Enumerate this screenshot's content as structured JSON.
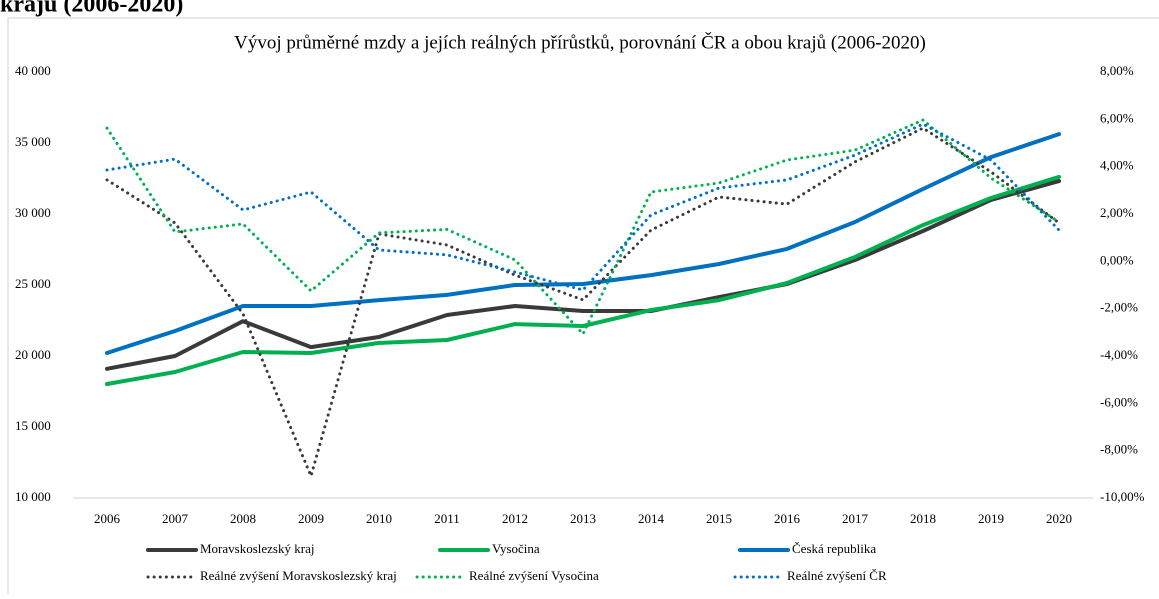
{
  "heading": "kraju (2006-2020)",
  "chart_data": {
    "type": "line",
    "title": "Vývoj průměrné mzdy a jejích reálných přírůstků, porovnání ČR a obou krajů (2006-2020)",
    "categories": [
      "2006",
      "2007",
      "2008",
      "2009",
      "2010",
      "2011",
      "2012",
      "2013",
      "2014",
      "2015",
      "2016",
      "2017",
      "2018",
      "2019",
      "2020"
    ],
    "ylim": [
      10000,
      40000
    ],
    "yticks": [
      {
        "value": 10000,
        "label": "10 000"
      },
      {
        "value": 15000,
        "label": "15 000"
      },
      {
        "value": 20000,
        "label": "20 000"
      },
      {
        "value": 25000,
        "label": "25 000"
      },
      {
        "value": 30000,
        "label": "30 000"
      },
      {
        "value": 35000,
        "label": "35 000"
      },
      {
        "value": 40000,
        "label": "40 000"
      }
    ],
    "y2lim": [
      -10,
      8
    ],
    "y2ticks": [
      {
        "value": -10,
        "label": "-10,00%"
      },
      {
        "value": -8,
        "label": "-8,00%"
      },
      {
        "value": -6,
        "label": "-6,00%"
      },
      {
        "value": -4,
        "label": "-4,00%"
      },
      {
        "value": -2,
        "label": "-2,00%"
      },
      {
        "value": 0,
        "label": "0,00%"
      },
      {
        "value": 2,
        "label": "2,00%"
      },
      {
        "value": 4,
        "label": "4,00%"
      },
      {
        "value": 6,
        "label": "6,00%"
      },
      {
        "value": 8,
        "label": "8,00%"
      }
    ],
    "grid": false,
    "legend": "bottom",
    "series": [
      {
        "name": "Moravskoslezský kraj",
        "color": "#3a3a3a",
        "style": "solid",
        "values": [
          19100,
          20000,
          22450,
          20630,
          21340,
          22890,
          23520,
          23170,
          23170,
          24150,
          25070,
          26760,
          28800,
          30990,
          32320
        ]
      },
      {
        "name": "Vysočina",
        "color": "#00b050",
        "style": "solid",
        "values": [
          18030,
          18870,
          20280,
          20210,
          20920,
          21130,
          22250,
          22110,
          23240,
          23940,
          25140,
          26970,
          29220,
          31130,
          32610
        ]
      },
      {
        "name": "Česká republika",
        "color": "#0070c0",
        "style": "solid",
        "values": [
          20210,
          21760,
          23520,
          23520,
          23940,
          24300,
          25000,
          25070,
          25700,
          26480,
          27540,
          29440,
          31760,
          34010,
          35630
        ]
      },
      {
        "name": "Reálné zvýšení Moravskoslezský kraj",
        "color": "#3a3a3a",
        "style": "dotted",
        "axis": "y2",
        "values": [
          3.44,
          1.62,
          -2.22,
          -9.07,
          1.16,
          0.69,
          -0.58,
          -1.63,
          1.32,
          2.72,
          2.42,
          4.2,
          5.63,
          3.78,
          1.62
        ]
      },
      {
        "name": "Reálné zvýšení Vysočina",
        "color": "#00b050",
        "style": "dotted",
        "axis": "y2",
        "values": [
          5.63,
          1.24,
          1.58,
          -1.25,
          1.2,
          1.35,
          0.06,
          -3.07,
          2.93,
          3.31,
          4.28,
          4.7,
          5.97,
          3.52,
          1.66
        ]
      },
      {
        "name": "Reálné zvýšení ČR",
        "color": "#0070c0",
        "style": "dotted",
        "axis": "y2",
        "values": [
          3.86,
          4.32,
          2.17,
          2.93,
          0.48,
          0.27,
          -0.45,
          -1.21,
          1.96,
          3.1,
          3.44,
          4.49,
          5.8,
          4.28,
          1.32
        ]
      }
    ]
  }
}
